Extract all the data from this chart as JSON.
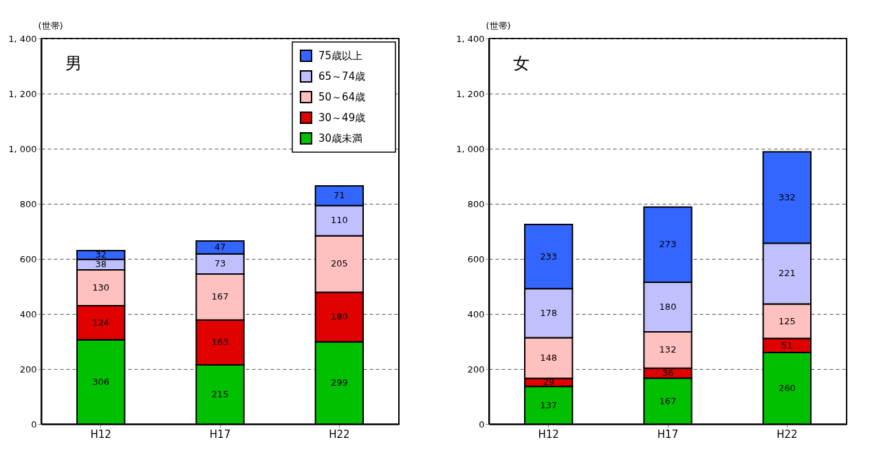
{
  "chart_data": [
    {
      "type": "bar",
      "title": "男",
      "ylabel": "(世帯)",
      "categories": [
        "H12",
        "H17",
        "H22"
      ],
      "stacked": true,
      "data_labels": true,
      "legend": "top right",
      "grid": "y",
      "line_style": "dashed",
      "ylim": [
        0,
        1400
      ],
      "yticks": [
        0,
        200,
        400,
        600,
        800,
        {
          "value": 1000,
          "label": "1, 000"
        },
        {
          "value": 1200,
          "label": "1, 200"
        },
        {
          "value": 1400,
          "label": "1, 400"
        }
      ],
      "series": [
        {
          "name": "30歳未満",
          "color": "#00c000",
          "values": [
            306,
            215,
            299
          ]
        },
        {
          "name": "30～49歳",
          "color": "#e00000",
          "values": [
            124,
            163,
            180
          ]
        },
        {
          "name": "50～64歳",
          "color": "#ffc0c0",
          "values": [
            130,
            167,
            205
          ]
        },
        {
          "name": "65～74歳",
          "color": "#c0c0ff",
          "values": [
            38,
            73,
            110
          ]
        },
        {
          "name": "75歳以上",
          "color": "#3366ff",
          "values": [
            32,
            47,
            71
          ]
        }
      ]
    },
    {
      "type": "bar",
      "title": "女",
      "ylabel": "(世帯)",
      "categories": [
        "H12",
        "H17",
        "H22"
      ],
      "stacked": true,
      "data_labels": true,
      "grid": "y",
      "line_style": "dashed",
      "ylim": [
        0,
        1400
      ],
      "yticks": [
        0,
        200,
        400,
        600,
        800,
        {
          "value": 1000,
          "label": "1, 000"
        },
        {
          "value": 1200,
          "label": "1, 200"
        },
        {
          "value": 1400,
          "label": "1, 400"
        }
      ],
      "series": [
        {
          "color": "#00c000",
          "values": [
            137,
            167,
            260
          ]
        },
        {
          "color": "#e00000",
          "values": [
            29,
            36,
            51
          ]
        },
        {
          "color": "#ffc0c0",
          "values": [
            148,
            132,
            125
          ]
        },
        {
          "color": "#c0c0ff",
          "values": [
            178,
            180,
            221
          ]
        },
        {
          "color": "#3366ff",
          "values": [
            233,
            273,
            332
          ]
        }
      ]
    }
  ]
}
